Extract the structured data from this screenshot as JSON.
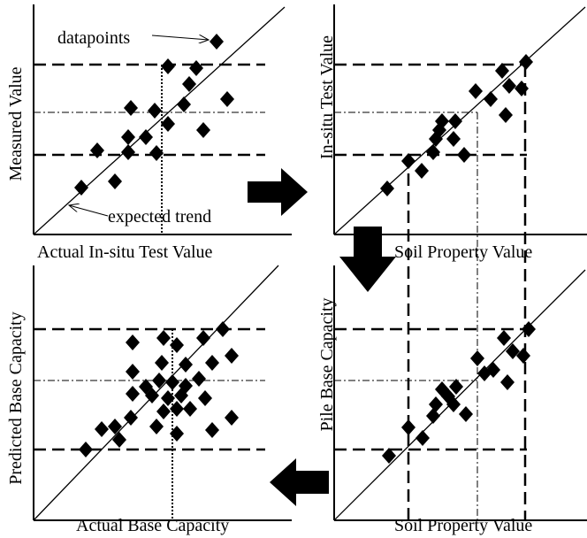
{
  "panels": [
    {
      "x_label": "Actual In-situ Test  Value",
      "y_label": "Measured Value"
    },
    {
      "x_label": "Soil Property  Value",
      "y_label": "In-situ Test Value"
    },
    {
      "x_label": "Actual Base Capacity",
      "y_label": "Predicted Base Capacity"
    },
    {
      "x_label": "Soil Property  Value",
      "y_label": "Pile Base Capacity"
    }
  ],
  "annotations": {
    "datapoints": "datapoints",
    "expected_trend": "expected trend"
  }
}
